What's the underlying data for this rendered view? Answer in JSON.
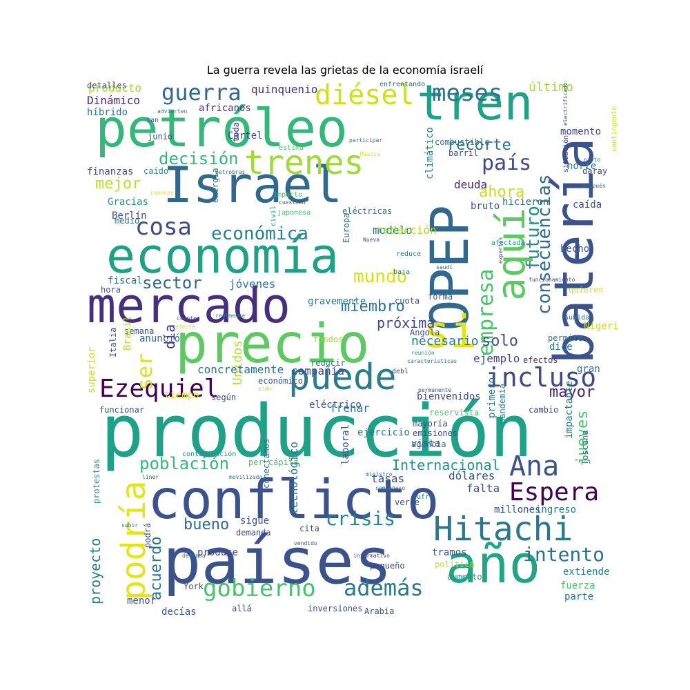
{
  "title": "La guerra revela las grietas de la economía israelí",
  "palette": [
    "#440154",
    "#46327e",
    "#365c8d",
    "#277f8e",
    "#1fa187",
    "#4ac16d",
    "#a0da39",
    "#fde725"
  ],
  "words": [
    {
      "text": "producción",
      "color": "#1fa187"
    },
    {
      "text": "países",
      "color": "#3b528b"
    },
    {
      "text": "conflicto",
      "color": "#3b528b"
    },
    {
      "text": "precio",
      "color": "#5ec962"
    },
    {
      "text": "mercado",
      "color": "#472f7d"
    },
    {
      "text": "economía",
      "color": "#1fa187"
    },
    {
      "text": "petróleo",
      "color": "#35b779"
    },
    {
      "text": "Israel",
      "color": "#31688e"
    },
    {
      "text": "OPEP",
      "color": "#31688e"
    },
    {
      "text": "batería",
      "color": "#3b528b"
    },
    {
      "text": "año",
      "color": "#21a685"
    },
    {
      "text": "tren",
      "color": "#1fa187"
    },
    {
      "text": "aquí",
      "color": "#5ec962"
    },
    {
      "text": "trenes",
      "color": "#a0da39"
    },
    {
      "text": "puede",
      "color": "#287c8e"
    },
    {
      "text": "Hitachi",
      "color": "#2a788e"
    },
    {
      "text": "si",
      "color": "#e2e418"
    },
    {
      "text": "podría",
      "color": "#e4e419"
    },
    {
      "text": "gobierno",
      "color": "#4ac16d"
    },
    {
      "text": "Ezequiel",
      "color": "#440154"
    },
    {
      "text": "incluso",
      "color": "#3e4989"
    },
    {
      "text": "diésel",
      "color": "#d0e11c"
    },
    {
      "text": "guerra",
      "color": "#31688e"
    },
    {
      "text": "meses",
      "color": "#2c728e"
    },
    {
      "text": "cosa",
      "color": "#3e4a89"
    },
    {
      "text": "Espera",
      "color": "#440154"
    },
    {
      "text": "Ana",
      "color": "#3b528b"
    },
    {
      "text": "además",
      "color": "#2a788e"
    },
    {
      "text": "intento",
      "color": "#2c728e"
    },
    {
      "text": "empresa",
      "color": "#4ac16d"
    },
    {
      "text": "país",
      "color": "#3e4989"
    },
    {
      "text": "económica",
      "color": "#26828e"
    },
    {
      "text": "consecuencias",
      "color": "#31688e"
    },
    {
      "text": "futuro",
      "color": "#21918c"
    },
    {
      "text": "decisión",
      "color": "#35b779"
    },
    {
      "text": "población",
      "color": "#35b779"
    },
    {
      "text": "mundo",
      "color": "#d5e21a"
    },
    {
      "text": "sector",
      "color": "#31688e"
    },
    {
      "text": "crisis",
      "color": "#25858e"
    },
    {
      "text": "bueno",
      "color": "#31688e"
    },
    {
      "text": "ser",
      "color": "#d2e21b"
    },
    {
      "text": "mayor",
      "color": "#482475"
    },
    {
      "text": "ahora",
      "color": "#c8e020"
    },
    {
      "text": "recorte",
      "color": "#2c728e"
    },
    {
      "text": "mejor",
      "color": "#bddf26"
    },
    {
      "text": "solo",
      "color": "#3b528b"
    },
    {
      "text": "miembro",
      "color": "#2c728e"
    },
    {
      "text": "proyecto",
      "color": "#2a788e"
    },
    {
      "text": "acuerdo",
      "color": "#2c728e"
    },
    {
      "text": "jueves",
      "color": "#4ac16d"
    },
    {
      "text": "día",
      "color": "#46327e"
    },
    {
      "text": "Internacional",
      "color": "#21918c"
    },
    {
      "text": "próxima",
      "color": "#3e4989"
    },
    {
      "text": "necesario",
      "color": "#2a788e"
    },
    {
      "text": "último",
      "color": "#a0da39"
    },
    {
      "text": "quinquenio",
      "color": "#46327e"
    },
    {
      "text": "producto",
      "color": "#a0da39"
    },
    {
      "text": "Dinámico",
      "color": "#482475"
    },
    {
      "text": "híbrido",
      "color": "#2c728e"
    },
    {
      "text": "africanos",
      "color": "#46327e"
    },
    {
      "text": "ejemplo",
      "color": "#3e4a89"
    },
    {
      "text": "tasas",
      "color": "#3b528b"
    },
    {
      "text": "dólares",
      "color": "#3b528b"
    },
    {
      "text": "Unidos",
      "color": "#b5de2b"
    },
    {
      "text": "compañía",
      "color": "#3e4989"
    },
    {
      "text": "concretamente",
      "color": "#2c728e"
    },
    {
      "text": "jóvenes",
      "color": "#2c728e"
    },
    {
      "text": "modelo",
      "color": "#2a788e"
    },
    {
      "text": "redacción",
      "color": "#a8db34"
    },
    {
      "text": "deuda",
      "color": "#482878"
    },
    {
      "text": "hicieron",
      "color": "#2c728e"
    },
    {
      "text": "bruto",
      "color": "#3b528b"
    },
    {
      "text": "caída",
      "color": "#3e4989"
    },
    {
      "text": "hecho",
      "color": "#3b528b"
    },
    {
      "text": "momento",
      "color": "#3e4989"
    },
    {
      "text": "norte",
      "color": "#2a788e"
    },
    {
      "text": "Gracias",
      "color": "#21918c"
    },
    {
      "text": "Berlín",
      "color": "#3b528b"
    },
    {
      "text": "medio",
      "color": "#2a788e"
    },
    {
      "text": "finanzas",
      "color": "#3e4989"
    },
    {
      "text": "caído",
      "color": "#21918c"
    },
    {
      "text": "junio",
      "color": "#3b528b"
    },
    {
      "text": "Cártel",
      "color": "#3e4989"
    },
    {
      "text": "tan",
      "color": "#3b528b"
    },
    {
      "text": "toda",
      "color": "#3e4989"
    },
    {
      "text": "estima",
      "color": "#4ac16d"
    },
    {
      "text": "combustible",
      "color": "#2c728e"
    },
    {
      "text": "barril",
      "color": "#3e4989"
    },
    {
      "text": "climático",
      "color": "#2a788e"
    },
    {
      "text": "enfrentando",
      "color": "#31688e"
    },
    {
      "text": "energía",
      "color": "#2a788e"
    },
    {
      "text": "impacto",
      "color": "#4ac16d"
    },
    {
      "text": "cuestión",
      "color": "#3b528b"
    },
    {
      "text": "civil",
      "color": "#21918c"
    },
    {
      "text": "japonesa",
      "color": "#4ac16d"
    },
    {
      "text": "Europa",
      "color": "#2c728e"
    },
    {
      "text": "eléctricas",
      "color": "#2a788e"
    },
    {
      "text": "Nueva",
      "color": "#3b528b"
    },
    {
      "text": "afectada",
      "color": "#21918c"
    },
    {
      "text": "reduce",
      "color": "#2c728e"
    },
    {
      "text": "baja",
      "color": "#2c728e"
    },
    {
      "text": "saudí",
      "color": "#3b528b"
    },
    {
      "text": "expertos",
      "color": "#3e4989"
    },
    {
      "text": "gravemente",
      "color": "#2a788e"
    },
    {
      "text": "fiscal",
      "color": "#2c728e"
    },
    {
      "text": "hora",
      "color": "#3e4989"
    },
    {
      "text": "cuota",
      "color": "#3e4989"
    },
    {
      "text": "forma",
      "color": "#3b528b"
    },
    {
      "text": "quieren",
      "color": "#d8e219"
    },
    {
      "text": "Nigeria",
      "color": "#c8e020"
    },
    {
      "text": "subida",
      "color": "#2a788e"
    },
    {
      "text": "permite",
      "color": "#2c728e"
    },
    {
      "text": "dice",
      "color": "#2a788e"
    },
    {
      "text": "gran",
      "color": "#2c728e"
    },
    {
      "text": "efectos",
      "color": "#472f7d"
    },
    {
      "text": "Angola",
      "color": "#3b528b"
    },
    {
      "text": "reunión",
      "color": "#21918c"
    },
    {
      "text": "características",
      "color": "#2c728e"
    },
    {
      "text": "debl",
      "color": "#3e4989"
    },
    {
      "text": "reducir",
      "color": "#2c728e"
    },
    {
      "text": "fondos",
      "color": "#a0da39"
    },
    {
      "text": "semana",
      "color": "#3b528b"
    },
    {
      "text": "anunció",
      "color": "#31688e"
    },
    {
      "text": "Brasil",
      "color": "#b5de2b"
    },
    {
      "text": "Italia",
      "color": "#3b528b"
    },
    {
      "text": "superior",
      "color": "#c8e020"
    },
    {
      "text": "realmente",
      "color": "#21918c"
    },
    {
      "text": "cuenten",
      "color": "#3e4989"
    },
    {
      "text": "afecta",
      "color": "#c8e020"
    },
    {
      "text": "económico",
      "color": "#3b528b"
    },
    {
      "text": "según",
      "color": "#3e4989"
    },
    {
      "text": "sido",
      "color": "#c8e020"
    },
    {
      "text": "permanente",
      "color": "#3e4989"
    },
    {
      "text": "bienvenidos",
      "color": "#3e4989"
    },
    {
      "text": "tiempo",
      "color": "#d8e219"
    },
    {
      "text": "funcionar",
      "color": "#3b528b"
    },
    {
      "text": "eléctrico",
      "color": "#3b528b"
    },
    {
      "text": "frenar",
      "color": "#2c728e"
    },
    {
      "text": "reservista",
      "color": "#4ac16d"
    },
    {
      "text": "cambio",
      "color": "#3e4989"
    },
    {
      "text": "primero",
      "color": "#2a788e"
    },
    {
      "text": "pandemia",
      "color": "#21918c"
    },
    {
      "text": "Toscana",
      "color": "#2c728e"
    },
    {
      "text": "impactante",
      "color": "#2c728e"
    },
    {
      "text": "mayoría",
      "color": "#3e4989"
    },
    {
      "text": "emisiones",
      "color": "#3e4989"
    },
    {
      "text": "agencia",
      "color": "#2c728e"
    },
    {
      "text": "ejercicio",
      "color": "#2c728e"
    },
    {
      "text": "vista",
      "color": "#3b528b"
    },
    {
      "text": "laboral",
      "color": "#3b528b"
    },
    {
      "text": "tecnológico",
      "color": "#2c728e"
    },
    {
      "text": "per cápita",
      "color": "#4ac16d"
    },
    {
      "text": "ministro",
      "color": "#2c728e"
    },
    {
      "text": "compañero",
      "color": "#2c728e"
    },
    {
      "text": "sufre",
      "color": "#2c728e"
    },
    {
      "text": "verse",
      "color": "#3b528b"
    },
    {
      "text": "falta",
      "color": "#3b528b"
    },
    {
      "text": "millones",
      "color": "#3b528b"
    },
    {
      "text": "ingreso",
      "color": "#2a788e"
    },
    {
      "text": "protestas",
      "color": "#21918c"
    },
    {
      "text": "contaminación",
      "color": "#21918c"
    },
    {
      "text": "liner",
      "color": "#3b528b"
    },
    {
      "text": "movilizada",
      "color": "#2c728e"
    },
    {
      "text": "conectamos",
      "color": "#2c728e"
    },
    {
      "text": "sigue",
      "color": "#3b528b"
    },
    {
      "text": "demanda",
      "color": "#3e4989"
    },
    {
      "text": "cita",
      "color": "#3e4989"
    },
    {
      "text": "subir",
      "color": "#2c728e"
    },
    {
      "text": "produce",
      "color": "#3e4989"
    },
    {
      "text": "vendido",
      "color": "#3b528b"
    },
    {
      "text": "defensa",
      "color": "#2c728e"
    },
    {
      "text": "informativo",
      "color": "#3e4989"
    },
    {
      "text": "pequeño",
      "color": "#3e4989"
    },
    {
      "text": "política",
      "color": "#c8e020"
    },
    {
      "text": "aumento",
      "color": "#21918c"
    },
    {
      "text": "tramos",
      "color": "#3b528b"
    },
    {
      "text": "extiende",
      "color": "#2a788e"
    },
    {
      "text": "fuerza",
      "color": "#4ac16d"
    },
    {
      "text": "parte",
      "color": "#2c728e"
    },
    {
      "text": "podrá",
      "color": "#3e4989"
    },
    {
      "text": "York",
      "color": "#3e4989"
    },
    {
      "text": "menor",
      "color": "#3b528b"
    },
    {
      "text": "decías",
      "color": "#3b528b"
    },
    {
      "text": "allá",
      "color": "#3e4989"
    },
    {
      "text": "inversiones",
      "color": "#3e4989"
    },
    {
      "text": "Arabia",
      "color": "#3e4989"
    },
    {
      "text": "electrificados",
      "color": "#3e4989"
    },
    {
      "text": "situación",
      "color": "#3e4989"
    },
    {
      "text": "nieto",
      "color": "#2c728e"
    },
    {
      "text": "daray",
      "color": "#3e4989"
    },
    {
      "text": "después",
      "color": "#2c728e"
    },
    {
      "text": "contingente",
      "color": "#c8e020"
    },
    {
      "text": "petrobras",
      "color": "#2c728e"
    },
    {
      "text": "conocer",
      "color": "#d8e219"
    },
    {
      "text": "advierten",
      "color": "#2c728e"
    },
    {
      "text": "participar",
      "color": "#2c728e"
    },
    {
      "text": "Música",
      "color": "#d8e219"
    },
    {
      "text": "funcionamiento",
      "color": "#3e4989"
    },
    {
      "text": "detalles",
      "color": "#3e4989"
    }
  ]
}
